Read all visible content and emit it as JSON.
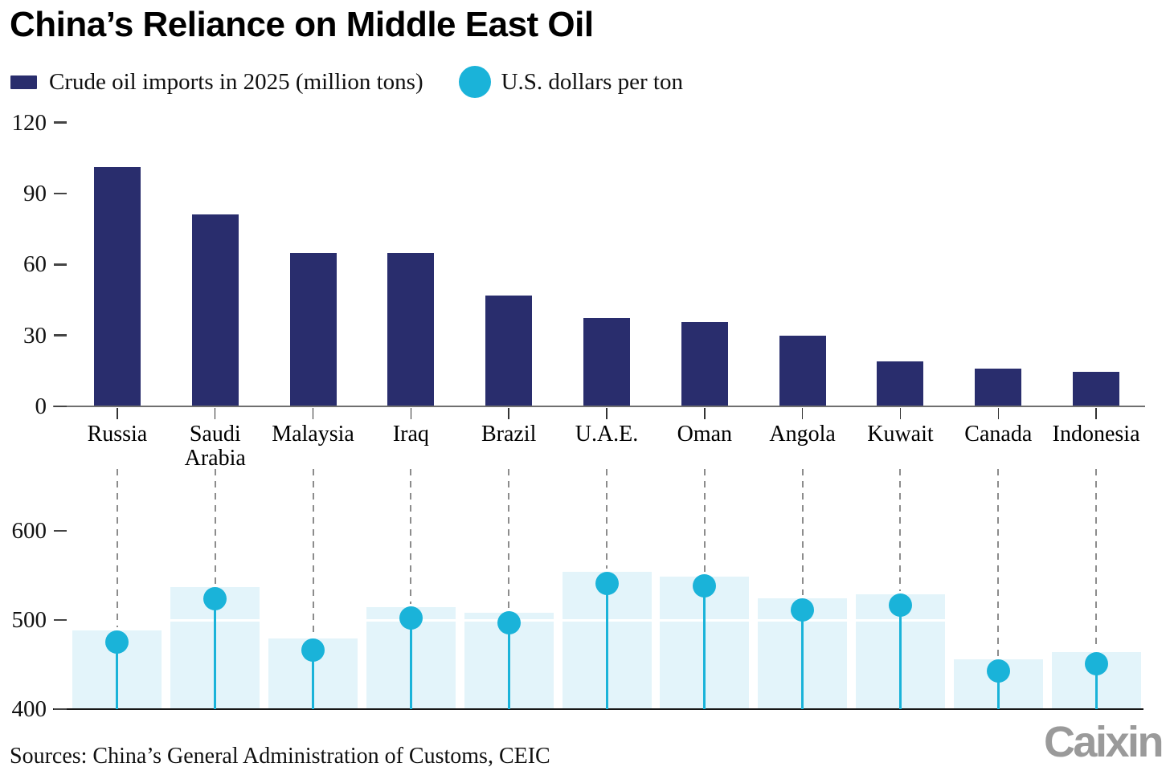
{
  "title": "China’s Reliance on Middle East Oil",
  "legend": {
    "imports": {
      "label": "Crude oil imports in 2025 (million tons)"
    },
    "price": {
      "label": "U.S. dollars per ton"
    }
  },
  "footer": {
    "sources": "Sources: China’s General Administration of Customs, CEIC",
    "logo": "Caixin"
  },
  "colors": {
    "navy": "#292d6d",
    "cyan": "#1ab3d9",
    "band": "#e3f4fa",
    "dash": "#8c8c8c",
    "top_axis": "#6f6f6f",
    "bottom_axis": "#161616"
  },
  "chart_data": [
    {
      "type": "bar",
      "name": "Crude oil imports in 2025 (million tons)",
      "categories": [
        "Russia",
        "Saudi\nArabia",
        "Malaysia",
        "Iraq",
        "Brazil",
        "U.A.E.",
        "Oman",
        "Angola",
        "Kuwait",
        "Canada",
        "Indonesia"
      ],
      "values": [
        101,
        81,
        65,
        65,
        47,
        37.5,
        35.5,
        30,
        19,
        16,
        14.5
      ],
      "ylim": [
        0,
        120
      ],
      "yticks": [
        0,
        30,
        60,
        90,
        120
      ],
      "grid": false,
      "legend_position": "top"
    },
    {
      "type": "scatter",
      "style": "lollipop markers with light background bands",
      "name": "U.S. dollars per ton",
      "categories": [
        "Russia",
        "Saudi\nArabia",
        "Malaysia",
        "Iraq",
        "Brazil",
        "U.A.E.",
        "Oman",
        "Angola",
        "Kuwait",
        "Canada",
        "Indonesia"
      ],
      "values": [
        475,
        524,
        466,
        502,
        497,
        541,
        538,
        511,
        517,
        443,
        451
      ],
      "band_tops": [
        488,
        537,
        479,
        514,
        508,
        554,
        549,
        524,
        529,
        456,
        464
      ],
      "ylim": [
        400,
        620
      ],
      "yticks": [
        400,
        500,
        600
      ],
      "grid": false
    }
  ]
}
